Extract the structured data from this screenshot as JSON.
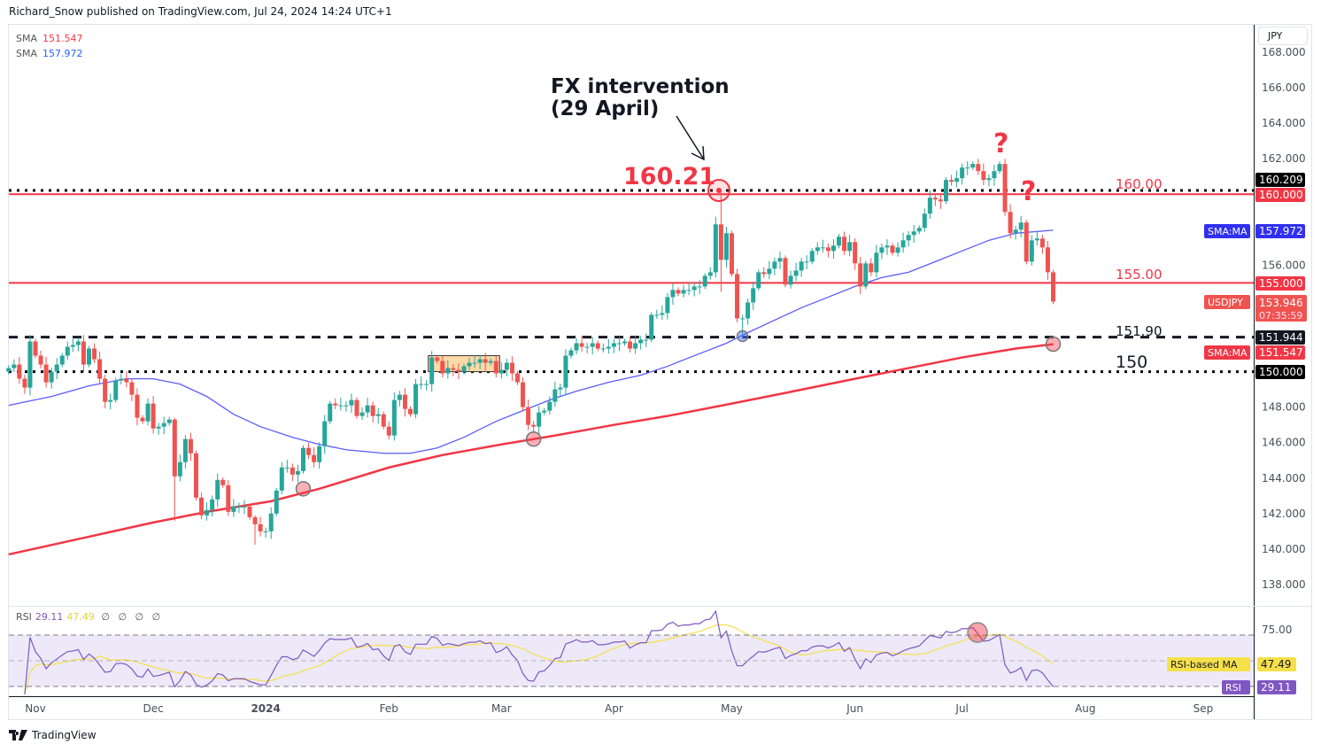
{
  "header": {
    "published": "Richard_Snow published on TradingView.com, Jul 24, 2024 14:24 UTC+1"
  },
  "legend": {
    "sma1_label": "SMA",
    "sma1_value": "151.547",
    "sma2_label": "SMA",
    "sma2_value": "157.972"
  },
  "currency_button": "JPY",
  "footer": {
    "brand": "TradingView"
  },
  "colors": {
    "up": "#26a69a",
    "down": "#ef5350",
    "sma200": "#f23645",
    "sma50": "#5b5bff",
    "rsi": "#7e57c2",
    "rsi_ma": "#f5e04a",
    "level_red": "#f23645"
  },
  "annotations": {
    "fx_line1": "FX intervention",
    "fx_line2": "(29 April)",
    "peak": "160.21",
    "q1": "?",
    "q2": "?",
    "lvl160": "160.00",
    "lvl155": "155.00",
    "lvl1519": "151.90",
    "lvl150": "150"
  },
  "price_labels": {
    "high": "160.209",
    "l160": "160.000",
    "sma50_tag": "SMA:MA",
    "sma50": "157.972",
    "l155": "155.000",
    "symbol": "USDJPY",
    "last": "153.946",
    "countdown": "07:35:59",
    "l1519": "151.944",
    "sma200_tag": "SMA:MA",
    "sma200": "151.547",
    "l150": "150.000"
  },
  "rsi_panel": {
    "title": "RSI",
    "rsi_value": "29.11",
    "ma_value": "47.49",
    "extra": "∅ ∅ ∅ ∅",
    "tick_75": "75.00",
    "ma_tag": "RSI-based MA",
    "rsi_tag": "RSI",
    "levels": [
      70,
      50,
      30
    ]
  },
  "chart_data": {
    "type": "candlestick",
    "symbol": "USDJPY",
    "ylim": [
      137,
      168.5
    ],
    "yticks": [
      "168.000",
      "166.000",
      "164.000",
      "162.000",
      "160.000",
      "158.000",
      "156.000",
      "154.000",
      "152.000",
      "150.000",
      "148.000",
      "146.000",
      "144.000",
      "142.000",
      "140.000",
      "138.000"
    ],
    "xticks": [
      {
        "label": "Nov",
        "date": "2023-11-01"
      },
      {
        "label": "Dec",
        "date": "2023-12-01"
      },
      {
        "label": "2024",
        "date": "2024-01-01"
      },
      {
        "label": "Feb",
        "date": "2024-02-01"
      },
      {
        "label": "Mar",
        "date": "2024-03-01"
      },
      {
        "label": "Apr",
        "date": "2024-04-01"
      },
      {
        "label": "May",
        "date": "2024-05-01"
      },
      {
        "label": "Jun",
        "date": "2024-06-03"
      },
      {
        "label": "Jul",
        "date": "2024-07-01"
      },
      {
        "label": "Aug",
        "date": "2024-08-01"
      },
      {
        "label": "Sep",
        "date": "2024-09-02"
      }
    ],
    "horizontal_levels": [
      {
        "value": 160.209,
        "style": "dotted",
        "color": "#000000"
      },
      {
        "value": 160.0,
        "style": "solid",
        "color": "#f23645"
      },
      {
        "value": 155.0,
        "style": "solid",
        "color": "#f23645"
      },
      {
        "value": 151.944,
        "style": "dashed",
        "color": "#131722"
      },
      {
        "value": 150.0,
        "style": "dotted",
        "color": "#000000"
      }
    ],
    "closes": [
      [
        "2023-10-25",
        150.2
      ],
      [
        "2023-10-26",
        150.4
      ],
      [
        "2023-10-27",
        149.6
      ],
      [
        "2023-10-30",
        149.1
      ],
      [
        "2023-10-31",
        151.7
      ],
      [
        "2023-11-01",
        150.9
      ],
      [
        "2023-11-02",
        150.4
      ],
      [
        "2023-11-03",
        149.4
      ],
      [
        "2023-11-06",
        150.0
      ],
      [
        "2023-11-07",
        150.4
      ],
      [
        "2023-11-08",
        150.9
      ],
      [
        "2023-11-09",
        151.4
      ],
      [
        "2023-11-10",
        151.5
      ],
      [
        "2023-11-13",
        151.7
      ],
      [
        "2023-11-14",
        150.4
      ],
      [
        "2023-11-15",
        151.3
      ],
      [
        "2023-11-16",
        150.7
      ],
      [
        "2023-11-17",
        149.6
      ],
      [
        "2023-11-20",
        148.3
      ],
      [
        "2023-11-21",
        148.4
      ],
      [
        "2023-11-22",
        149.5
      ],
      [
        "2023-11-23",
        149.6
      ],
      [
        "2023-11-24",
        149.4
      ],
      [
        "2023-11-27",
        148.7
      ],
      [
        "2023-11-28",
        147.4
      ],
      [
        "2023-11-29",
        147.2
      ],
      [
        "2023-11-30",
        148.2
      ],
      [
        "2023-12-01",
        146.8
      ],
      [
        "2023-12-04",
        146.9
      ],
      [
        "2023-12-05",
        147.1
      ],
      [
        "2023-12-06",
        147.3
      ],
      [
        "2023-12-07",
        144.1
      ],
      [
        "2023-12-08",
        144.9
      ],
      [
        "2023-12-11",
        146.2
      ],
      [
        "2023-12-12",
        145.4
      ],
      [
        "2023-12-13",
        142.9
      ],
      [
        "2023-12-14",
        141.9
      ],
      [
        "2023-12-15",
        142.2
      ],
      [
        "2023-12-18",
        142.8
      ],
      [
        "2023-12-19",
        143.9
      ],
      [
        "2023-12-20",
        143.6
      ],
      [
        "2023-12-21",
        142.1
      ],
      [
        "2023-12-22",
        142.4
      ],
      [
        "2023-12-25",
        142.4
      ],
      [
        "2023-12-26",
        142.4
      ],
      [
        "2023-12-27",
        141.8
      ],
      [
        "2023-12-28",
        141.4
      ],
      [
        "2023-12-29",
        141.0
      ],
      [
        "2024-01-01",
        141.0
      ],
      [
        "2024-01-02",
        142.0
      ],
      [
        "2024-01-03",
        143.3
      ],
      [
        "2024-01-04",
        144.6
      ],
      [
        "2024-01-05",
        144.6
      ],
      [
        "2024-01-08",
        144.2
      ],
      [
        "2024-01-09",
        144.4
      ],
      [
        "2024-01-10",
        145.7
      ],
      [
        "2024-01-11",
        145.3
      ],
      [
        "2024-01-12",
        144.9
      ],
      [
        "2024-01-15",
        145.8
      ],
      [
        "2024-01-16",
        147.2
      ],
      [
        "2024-01-17",
        148.2
      ],
      [
        "2024-01-18",
        148.1
      ],
      [
        "2024-01-19",
        148.1
      ],
      [
        "2024-01-22",
        148.1
      ],
      [
        "2024-01-23",
        148.4
      ],
      [
        "2024-01-24",
        147.5
      ],
      [
        "2024-01-25",
        147.7
      ],
      [
        "2024-01-26",
        148.1
      ],
      [
        "2024-01-29",
        147.5
      ],
      [
        "2024-01-30",
        147.6
      ],
      [
        "2024-01-31",
        146.9
      ],
      [
        "2024-02-01",
        146.4
      ],
      [
        "2024-02-02",
        148.4
      ],
      [
        "2024-02-05",
        148.7
      ],
      [
        "2024-02-06",
        147.9
      ],
      [
        "2024-02-07",
        147.6
      ],
      [
        "2024-02-08",
        149.3
      ],
      [
        "2024-02-09",
        149.3
      ],
      [
        "2024-02-12",
        149.3
      ],
      [
        "2024-02-13",
        150.8
      ],
      [
        "2024-02-14",
        150.6
      ],
      [
        "2024-02-15",
        149.9
      ],
      [
        "2024-02-16",
        150.2
      ],
      [
        "2024-02-19",
        150.1
      ],
      [
        "2024-02-20",
        150.0
      ],
      [
        "2024-02-21",
        150.3
      ],
      [
        "2024-02-22",
        150.5
      ],
      [
        "2024-02-23",
        150.5
      ],
      [
        "2024-02-26",
        150.7
      ],
      [
        "2024-02-27",
        150.5
      ],
      [
        "2024-02-28",
        150.6
      ],
      [
        "2024-02-29",
        149.9
      ],
      [
        "2024-03-01",
        150.1
      ],
      [
        "2024-03-04",
        150.5
      ],
      [
        "2024-03-05",
        149.9
      ],
      [
        "2024-03-06",
        149.4
      ],
      [
        "2024-03-07",
        148.0
      ],
      [
        "2024-03-08",
        147.0
      ],
      [
        "2024-03-11",
        146.9
      ],
      [
        "2024-03-12",
        147.7
      ],
      [
        "2024-03-13",
        147.8
      ],
      [
        "2024-03-14",
        148.3
      ],
      [
        "2024-03-15",
        149.0
      ],
      [
        "2024-03-18",
        149.1
      ],
      [
        "2024-03-19",
        150.9
      ],
      [
        "2024-03-20",
        151.2
      ],
      [
        "2024-03-21",
        151.6
      ],
      [
        "2024-03-22",
        151.4
      ],
      [
        "2024-03-25",
        151.4
      ],
      [
        "2024-03-26",
        151.6
      ],
      [
        "2024-03-27",
        151.3
      ],
      [
        "2024-03-28",
        151.3
      ],
      [
        "2024-03-29",
        151.4
      ],
      [
        "2024-04-01",
        151.6
      ],
      [
        "2024-04-02",
        151.6
      ],
      [
        "2024-04-03",
        151.7
      ],
      [
        "2024-04-04",
        151.3
      ],
      [
        "2024-04-05",
        151.6
      ],
      [
        "2024-04-08",
        151.8
      ],
      [
        "2024-04-09",
        151.8
      ],
      [
        "2024-04-10",
        153.2
      ],
      [
        "2024-04-11",
        153.2
      ],
      [
        "2024-04-12",
        153.3
      ],
      [
        "2024-04-15",
        154.2
      ],
      [
        "2024-04-16",
        154.6
      ],
      [
        "2024-04-17",
        154.4
      ],
      [
        "2024-04-18",
        154.6
      ],
      [
        "2024-04-19",
        154.6
      ],
      [
        "2024-04-22",
        154.8
      ],
      [
        "2024-04-23",
        154.8
      ],
      [
        "2024-04-24",
        155.4
      ],
      [
        "2024-04-25",
        155.6
      ],
      [
        "2024-04-26",
        158.3
      ],
      [
        "2024-04-29",
        156.3
      ],
      [
        "2024-04-30",
        157.8
      ],
      [
        "2024-05-01",
        155.5
      ],
      [
        "2024-05-02",
        153.0
      ],
      [
        "2024-05-03",
        153.0
      ],
      [
        "2024-05-06",
        153.9
      ],
      [
        "2024-05-07",
        154.7
      ],
      [
        "2024-05-08",
        155.6
      ],
      [
        "2024-05-09",
        155.5
      ],
      [
        "2024-05-10",
        155.8
      ],
      [
        "2024-05-13",
        156.2
      ],
      [
        "2024-05-14",
        156.4
      ],
      [
        "2024-05-15",
        154.9
      ],
      [
        "2024-05-16",
        155.4
      ],
      [
        "2024-05-17",
        155.7
      ],
      [
        "2024-05-20",
        156.2
      ],
      [
        "2024-05-21",
        156.2
      ],
      [
        "2024-05-22",
        156.8
      ],
      [
        "2024-05-23",
        157.0
      ],
      [
        "2024-05-24",
        157.0
      ],
      [
        "2024-05-27",
        156.8
      ],
      [
        "2024-05-28",
        157.1
      ],
      [
        "2024-05-29",
        157.6
      ],
      [
        "2024-05-30",
        156.8
      ],
      [
        "2024-05-31",
        157.3
      ],
      [
        "2024-06-03",
        156.1
      ],
      [
        "2024-06-04",
        154.8
      ],
      [
        "2024-06-05",
        156.1
      ],
      [
        "2024-06-06",
        155.6
      ],
      [
        "2024-06-07",
        156.7
      ],
      [
        "2024-06-10",
        157.0
      ],
      [
        "2024-06-11",
        157.1
      ],
      [
        "2024-06-12",
        156.7
      ],
      [
        "2024-06-13",
        157.0
      ],
      [
        "2024-06-14",
        157.4
      ],
      [
        "2024-06-17",
        157.7
      ],
      [
        "2024-06-18",
        157.9
      ],
      [
        "2024-06-19",
        158.1
      ],
      [
        "2024-06-20",
        158.9
      ],
      [
        "2024-06-21",
        159.8
      ],
      [
        "2024-06-24",
        159.7
      ],
      [
        "2024-06-25",
        159.6
      ],
      [
        "2024-06-26",
        160.8
      ],
      [
        "2024-06-27",
        160.7
      ],
      [
        "2024-06-28",
        160.9
      ],
      [
        "2024-07-01",
        161.5
      ],
      [
        "2024-07-02",
        161.5
      ],
      [
        "2024-07-03",
        161.7
      ],
      [
        "2024-07-04",
        161.3
      ],
      [
        "2024-07-05",
        160.8
      ],
      [
        "2024-07-08",
        160.9
      ],
      [
        "2024-07-09",
        161.3
      ],
      [
        "2024-07-10",
        161.7
      ],
      [
        "2024-07-11",
        159.0
      ],
      [
        "2024-07-12",
        157.8
      ],
      [
        "2024-07-15",
        158.0
      ],
      [
        "2024-07-16",
        158.4
      ],
      [
        "2024-07-17",
        156.2
      ],
      [
        "2024-07-18",
        157.4
      ],
      [
        "2024-07-19",
        157.5
      ],
      [
        "2024-07-22",
        157.0
      ],
      [
        "2024-07-23",
        155.6
      ],
      [
        "2024-07-24",
        153.946
      ]
    ],
    "extremes": [
      [
        "2024-04-29",
        160.209,
        154.5
      ],
      [
        "2024-05-03",
        153.2,
        151.86
      ],
      [
        "2023-12-28",
        141.9,
        140.25
      ],
      [
        "2023-12-07",
        147.4,
        141.6
      ]
    ],
    "sma50": [
      [
        "2023-10-25",
        148.1
      ],
      [
        "2023-11-06",
        148.6
      ],
      [
        "2023-11-15",
        149.2
      ],
      [
        "2023-11-24",
        149.6
      ],
      [
        "2023-12-01",
        149.6
      ],
      [
        "2023-12-08",
        149.3
      ],
      [
        "2023-12-15",
        148.6
      ],
      [
        "2023-12-22",
        147.6
      ],
      [
        "2023-12-29",
        146.9
      ],
      [
        "2024-01-08",
        146.3
      ],
      [
        "2024-01-15",
        145.9
      ],
      [
        "2024-01-22",
        145.6
      ],
      [
        "2024-01-31",
        145.4
      ],
      [
        "2024-02-07",
        145.4
      ],
      [
        "2024-02-14",
        145.7
      ],
      [
        "2024-02-21",
        146.3
      ],
      [
        "2024-02-29",
        147.2
      ],
      [
        "2024-03-07",
        147.8
      ],
      [
        "2024-03-14",
        148.4
      ],
      [
        "2024-03-21",
        148.9
      ],
      [
        "2024-03-29",
        149.4
      ],
      [
        "2024-04-08",
        149.8
      ],
      [
        "2024-04-15",
        150.3
      ],
      [
        "2024-04-22",
        150.9
      ],
      [
        "2024-04-30",
        151.6
      ],
      [
        "2024-05-06",
        152.2
      ],
      [
        "2024-05-13",
        152.9
      ],
      [
        "2024-05-20",
        153.6
      ],
      [
        "2024-05-27",
        154.2
      ],
      [
        "2024-06-03",
        154.8
      ],
      [
        "2024-06-10",
        155.3
      ],
      [
        "2024-06-17",
        155.6
      ],
      [
        "2024-06-24",
        156.2
      ],
      [
        "2024-07-01",
        156.8
      ],
      [
        "2024-07-08",
        157.4
      ],
      [
        "2024-07-15",
        157.8
      ],
      [
        "2024-07-24",
        157.972
      ]
    ],
    "sma200": [
      [
        "2023-10-25",
        139.7
      ],
      [
        "2023-11-15",
        140.7
      ],
      [
        "2023-12-01",
        141.5
      ],
      [
        "2023-12-15",
        142.1
      ],
      [
        "2024-01-02",
        142.7
      ],
      [
        "2024-01-15",
        143.4
      ],
      [
        "2024-02-01",
        144.6
      ],
      [
        "2024-02-15",
        145.3
      ],
      [
        "2024-03-01",
        145.9
      ],
      [
        "2024-03-15",
        146.4
      ],
      [
        "2024-04-01",
        147.0
      ],
      [
        "2024-04-15",
        147.5
      ],
      [
        "2024-05-01",
        148.2
      ],
      [
        "2024-05-15",
        148.8
      ],
      [
        "2024-06-03",
        149.6
      ],
      [
        "2024-06-17",
        150.2
      ],
      [
        "2024-07-01",
        150.8
      ],
      [
        "2024-07-15",
        151.3
      ],
      [
        "2024-07-24",
        151.547
      ]
    ],
    "markers": [
      {
        "date": "2024-01-10",
        "value": 143.4,
        "color": "pink"
      },
      {
        "date": "2024-03-11",
        "value": 146.2,
        "color": "pink"
      },
      {
        "date": "2024-05-03",
        "value": 152.0,
        "color": "blue"
      },
      {
        "date": "2024-07-24",
        "value": 151.55,
        "color": "pink"
      }
    ],
    "highlight_box": {
      "from": "2024-02-13",
      "to": "2024-02-29",
      "low": 150.0,
      "high": 150.8
    }
  }
}
